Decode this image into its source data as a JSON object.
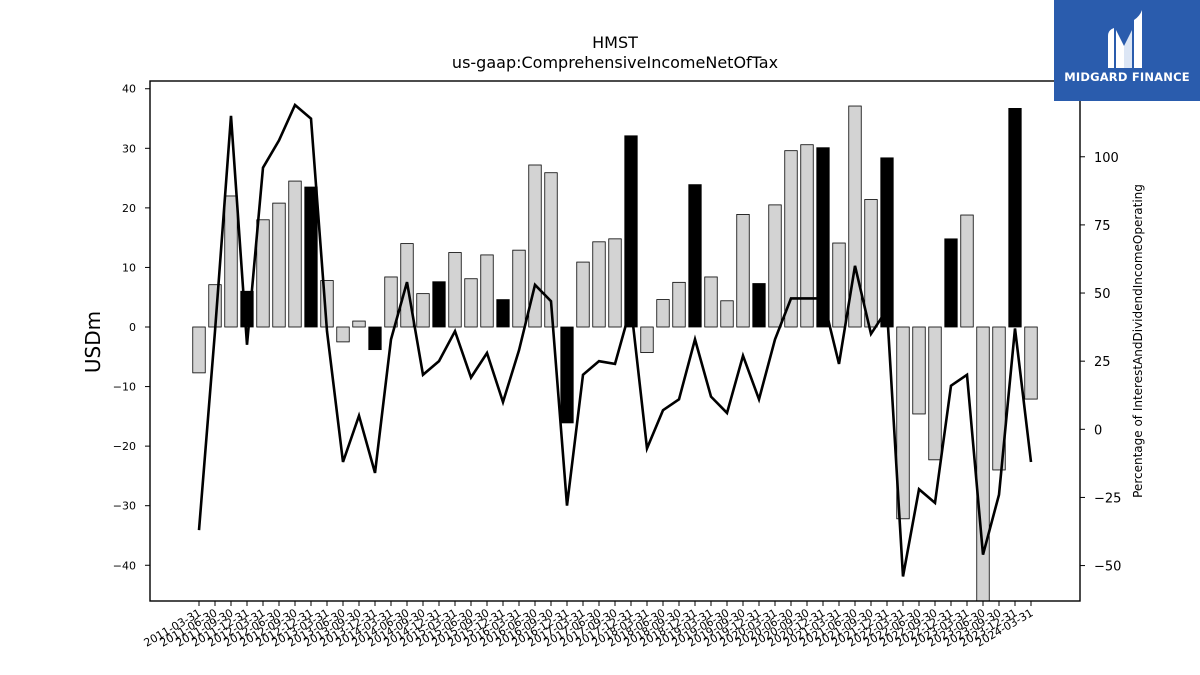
{
  "brand": {
    "name": "MIDGARD FINANCE",
    "icon": "midgard-logo-icon",
    "color": "#2a5cad"
  },
  "chart_data": {
    "type": "bar",
    "title": "HMST",
    "subtitle": "us-gaap:ComprehensiveIncomeNetOfTax",
    "ylabel": "USDm",
    "y2label": "Percentage of InterestAndDividendIncomeOperating",
    "ylim": [
      -46,
      41.3
    ],
    "y2lim": [
      -63,
      127.8
    ],
    "yticks": [
      -40,
      -30,
      -20,
      -10,
      0,
      10,
      20,
      30,
      40
    ],
    "y2ticks": [
      -50,
      -25,
      0,
      25,
      50,
      75,
      100
    ],
    "grid": false,
    "categories": [
      "2011-03-31",
      "2011-06-30",
      "2011-09-30",
      "2011-12-31",
      "2012-03-31",
      "2012-06-30",
      "2012-09-30",
      "2012-12-31",
      "2013-03-31",
      "2013-06-30",
      "2013-09-30",
      "2013-12-31",
      "2014-03-31",
      "2014-06-30",
      "2014-09-30",
      "2014-12-31",
      "2015-03-31",
      "2015-06-30",
      "2015-09-30",
      "2015-12-31",
      "2016-03-31",
      "2016-06-30",
      "2016-09-30",
      "2016-12-31",
      "2017-03-31",
      "2017-06-30",
      "2017-09-30",
      "2017-12-31",
      "2018-03-31",
      "2018-06-30",
      "2018-09-30",
      "2018-12-31",
      "2019-03-31",
      "2019-06-30",
      "2019-09-30",
      "2019-12-31",
      "2020-03-31",
      "2020-06-30",
      "2020-09-30",
      "2020-12-31",
      "2021-03-31",
      "2021-06-30",
      "2021-09-30",
      "2021-12-31",
      "2022-03-31",
      "2022-06-30",
      "2022-09-30",
      "2022-12-31",
      "2023-03-31",
      "2023-06-30",
      "2023-09-30",
      "2023-12-31",
      "2024-03-31"
    ],
    "series": [
      {
        "kind": "bar",
        "values": [
          -7.7,
          7.1,
          22.0,
          6.0,
          18.0,
          20.8,
          24.5,
          23.5,
          7.8,
          -2.5,
          1.0,
          -3.8,
          8.4,
          14.0,
          5.6,
          7.6,
          12.5,
          8.1,
          12.1,
          4.6,
          12.9,
          27.2,
          25.9,
          -16.1,
          10.9,
          14.3,
          14.8,
          32.1,
          -4.3,
          4.6,
          7.5,
          23.9,
          8.4,
          4.4,
          18.9,
          7.3,
          20.5,
          29.6,
          30.6,
          30.1,
          14.1,
          37.1,
          21.4,
          28.4,
          -32.2,
          -14.6,
          -22.3,
          14.8,
          18.8,
          -46.0,
          -24.0,
          36.7,
          -12.1
        ],
        "highlight": [
          false,
          false,
          false,
          true,
          false,
          false,
          false,
          true,
          false,
          false,
          false,
          true,
          false,
          false,
          false,
          true,
          false,
          false,
          false,
          true,
          false,
          false,
          false,
          true,
          false,
          false,
          false,
          true,
          false,
          false,
          false,
          true,
          false,
          false,
          false,
          true,
          false,
          false,
          false,
          true,
          false,
          false,
          false,
          true,
          false,
          false,
          false,
          true,
          false,
          false,
          false,
          true,
          false
        ],
        "colors": {
          "normal": "#d3d3d3",
          "highlight": "#000000",
          "edge": "#000000"
        }
      },
      {
        "kind": "line",
        "axis": "right",
        "color": "#000000",
        "values": [
          -37,
          36,
          115,
          31,
          96,
          106,
          119,
          114,
          36,
          -12,
          5,
          -16,
          33,
          54,
          20,
          25,
          36,
          19,
          28,
          10,
          29,
          53,
          47,
          -28,
          20,
          25,
          24,
          45,
          -7,
          7,
          11,
          33,
          12,
          6,
          27,
          11,
          33,
          48,
          48,
          48,
          24,
          60,
          35,
          44,
          -54,
          -22,
          -27,
          16,
          20,
          -46,
          -24,
          37,
          -12
        ]
      }
    ]
  }
}
